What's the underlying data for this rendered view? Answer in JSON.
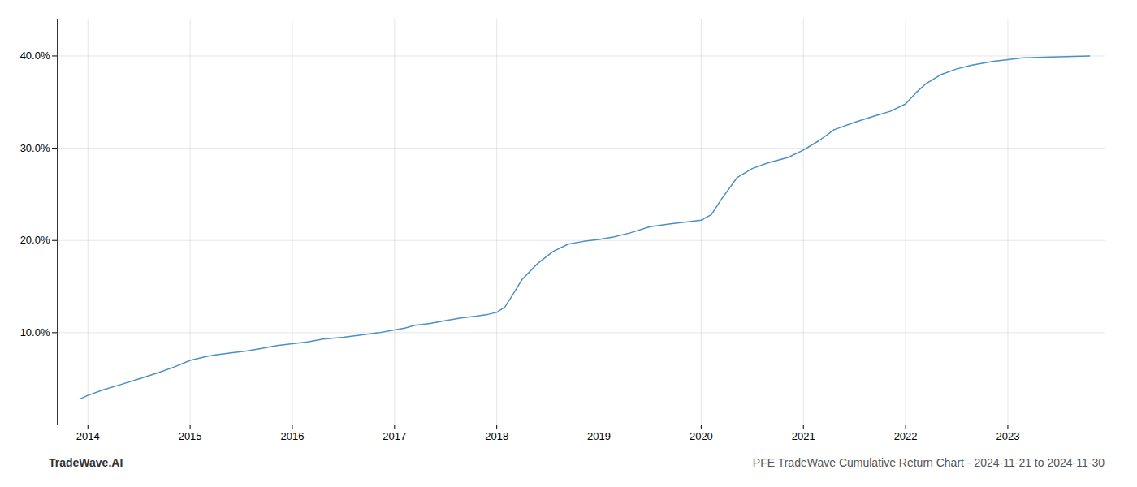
{
  "chart_data": {
    "type": "line",
    "title": "PFE TradeWave Cumulative Return Chart - 2024-11-21 to 2024-11-30",
    "annotations": [
      "TradeWave.AI"
    ],
    "color": "#4a90c4",
    "x": [
      2013.92,
      2014.0,
      2014.15,
      2014.3,
      2014.5,
      2014.7,
      2014.85,
      2015.0,
      2015.15,
      2015.25,
      2015.4,
      2015.55,
      2015.7,
      2015.85,
      2016.0,
      2016.15,
      2016.3,
      2016.5,
      2016.7,
      2016.85,
      2017.0,
      2017.1,
      2017.2,
      2017.35,
      2017.5,
      2017.65,
      2017.8,
      2017.92,
      2018.0,
      2018.08,
      2018.15,
      2018.25,
      2018.4,
      2018.55,
      2018.7,
      2018.85,
      2019.0,
      2019.15,
      2019.3,
      2019.5,
      2019.7,
      2019.85,
      2020.0,
      2020.1,
      2020.2,
      2020.35,
      2020.5,
      2020.65,
      2020.85,
      2021.0,
      2021.15,
      2021.3,
      2021.5,
      2021.7,
      2021.85,
      2022.0,
      2022.1,
      2022.2,
      2022.35,
      2022.5,
      2022.65,
      2022.75,
      2022.85,
      2023.0,
      2023.15,
      2023.5,
      2023.8
    ],
    "values": [
      0.028,
      0.032,
      0.038,
      0.043,
      0.05,
      0.057,
      0.063,
      0.07,
      0.074,
      0.076,
      0.078,
      0.08,
      0.083,
      0.086,
      0.088,
      0.09,
      0.093,
      0.095,
      0.098,
      0.1,
      0.103,
      0.105,
      0.108,
      0.11,
      0.113,
      0.116,
      0.118,
      0.12,
      0.122,
      0.128,
      0.14,
      0.158,
      0.175,
      0.188,
      0.196,
      0.199,
      0.201,
      0.204,
      0.208,
      0.215,
      0.218,
      0.22,
      0.222,
      0.228,
      0.245,
      0.268,
      0.278,
      0.284,
      0.29,
      0.298,
      0.308,
      0.32,
      0.328,
      0.335,
      0.34,
      0.348,
      0.36,
      0.37,
      0.38,
      0.386,
      0.39,
      0.392,
      0.394,
      0.396,
      0.398,
      0.399,
      0.4
    ],
    "xlim": [
      2013.7,
      2023.95
    ],
    "ylim": [
      0.0,
      0.44
    ],
    "xticks": [
      2014,
      2015,
      2016,
      2017,
      2018,
      2019,
      2020,
      2021,
      2022,
      2023
    ],
    "yticks": [
      {
        "value": 0.1,
        "label": "10.0%"
      },
      {
        "value": 0.2,
        "label": "20.0%"
      },
      {
        "value": 0.3,
        "label": "30.0%"
      },
      {
        "value": 0.4,
        "label": "40.0%"
      }
    ],
    "grid": true
  }
}
